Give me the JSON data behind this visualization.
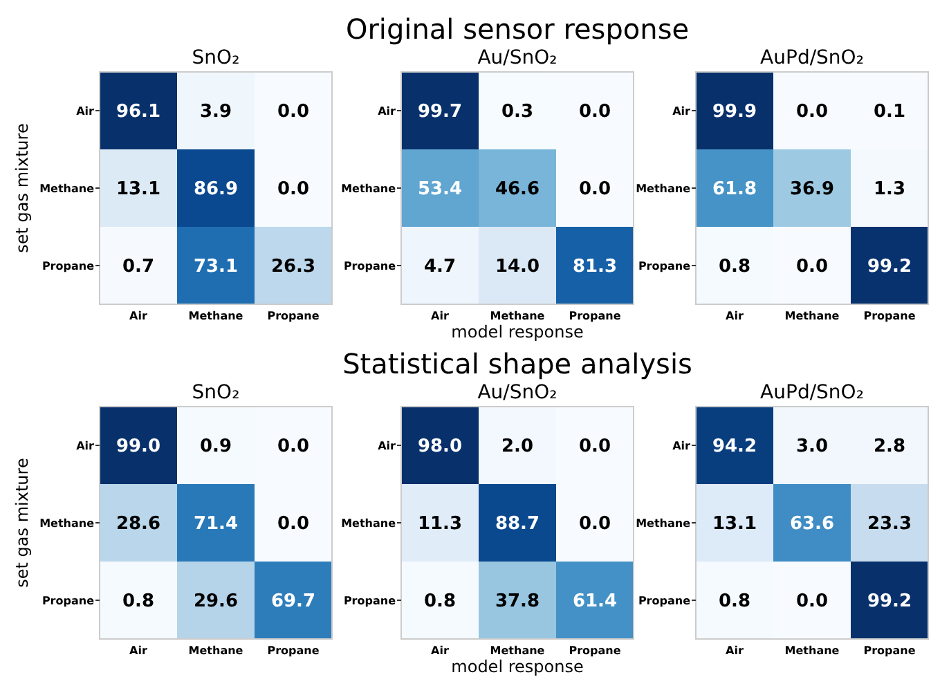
{
  "chart_data": [
    {
      "type": "heatmap",
      "title": "SnO₂",
      "ylabel": "set gas mixture",
      "categories": [
        "Air",
        "Methane",
        "Propane"
      ],
      "y_categories": [
        "Air",
        "Methane",
        "Propane"
      ],
      "cells": [
        [
          96.1,
          3.9,
          0
        ],
        [
          13.1,
          86.9,
          0
        ],
        [
          0.7,
          73.1,
          26.3
        ]
      ],
      "cell_labels": [
        [
          "96.1",
          "3.9",
          "0.0"
        ],
        [
          "13.1",
          "86.9",
          "0.0"
        ],
        [
          "0.7",
          "73.1",
          "26.3"
        ]
      ],
      "data_labels": true
    },
    {
      "type": "heatmap",
      "title": "Au/SnO₂",
      "annotations": [
        "Original sensor response"
      ],
      "xlabel": "model response",
      "categories": [
        "Air",
        "Methane",
        "Propane"
      ],
      "y_categories": [
        "Air",
        "Methane",
        "Propane"
      ],
      "cells": [
        [
          99.7,
          0.3,
          0
        ],
        [
          53.4,
          46.6,
          0
        ],
        [
          4.7,
          14,
          81.3
        ]
      ],
      "cell_labels": [
        [
          "99.7",
          "0.3",
          "0.0"
        ],
        [
          "53.4",
          "46.6",
          "0.0"
        ],
        [
          "4.7",
          "14.0",
          "81.3"
        ]
      ],
      "data_labels": true
    },
    {
      "type": "heatmap",
      "title": "AuPd/SnO₂",
      "categories": [
        "Air",
        "Methane",
        "Propane"
      ],
      "y_categories": [
        "Air",
        "Methane",
        "Propane"
      ],
      "cells": [
        [
          99.9,
          0,
          0.1
        ],
        [
          61.8,
          36.9,
          1.3
        ],
        [
          0.8,
          0,
          99.2
        ]
      ],
      "cell_labels": [
        [
          "99.9",
          "0.0",
          "0.1"
        ],
        [
          "61.8",
          "36.9",
          "1.3"
        ],
        [
          "0.8",
          "0.0",
          "99.2"
        ]
      ],
      "data_labels": true
    },
    {
      "type": "heatmap",
      "title": "SnO₂",
      "ylabel": "set gas mixture",
      "categories": [
        "Air",
        "Methane",
        "Propane"
      ],
      "y_categories": [
        "Air",
        "Methane",
        "Propane"
      ],
      "cells": [
        [
          99,
          0.9,
          0
        ],
        [
          28.6,
          71.4,
          0
        ],
        [
          0.8,
          29.6,
          69.7
        ]
      ],
      "cell_labels": [
        [
          "99.0",
          "0.9",
          "0.0"
        ],
        [
          "28.6",
          "71.4",
          "0.0"
        ],
        [
          "0.8",
          "29.6",
          "69.7"
        ]
      ],
      "data_labels": true
    },
    {
      "type": "heatmap",
      "title": "Au/SnO₂",
      "annotations": [
        "Statistical shape analysis"
      ],
      "xlabel": "model response",
      "categories": [
        "Air",
        "Methane",
        "Propane"
      ],
      "y_categories": [
        "Air",
        "Methane",
        "Propane"
      ],
      "cells": [
        [
          98,
          2,
          0
        ],
        [
          11.3,
          88.7,
          0
        ],
        [
          0.8,
          37.8,
          61.4
        ]
      ],
      "cell_labels": [
        [
          "98.0",
          "2.0",
          "0.0"
        ],
        [
          "11.3",
          "88.7",
          "0.0"
        ],
        [
          "0.8",
          "37.8",
          "61.4"
        ]
      ],
      "data_labels": true
    },
    {
      "type": "heatmap",
      "title": "AuPd/SnO₂",
      "categories": [
        "Air",
        "Methane",
        "Propane"
      ],
      "y_categories": [
        "Air",
        "Methane",
        "Propane"
      ],
      "cells": [
        [
          94.2,
          3,
          2.8
        ],
        [
          13.1,
          63.6,
          23.3
        ],
        [
          0.8,
          0,
          99.2
        ]
      ],
      "cell_labels": [
        [
          "94.2",
          "3.0",
          "2.8"
        ],
        [
          "13.1",
          "63.6",
          "23.3"
        ],
        [
          "0.8",
          "0.0",
          "99.2"
        ]
      ],
      "data_labels": true
    }
  ]
}
